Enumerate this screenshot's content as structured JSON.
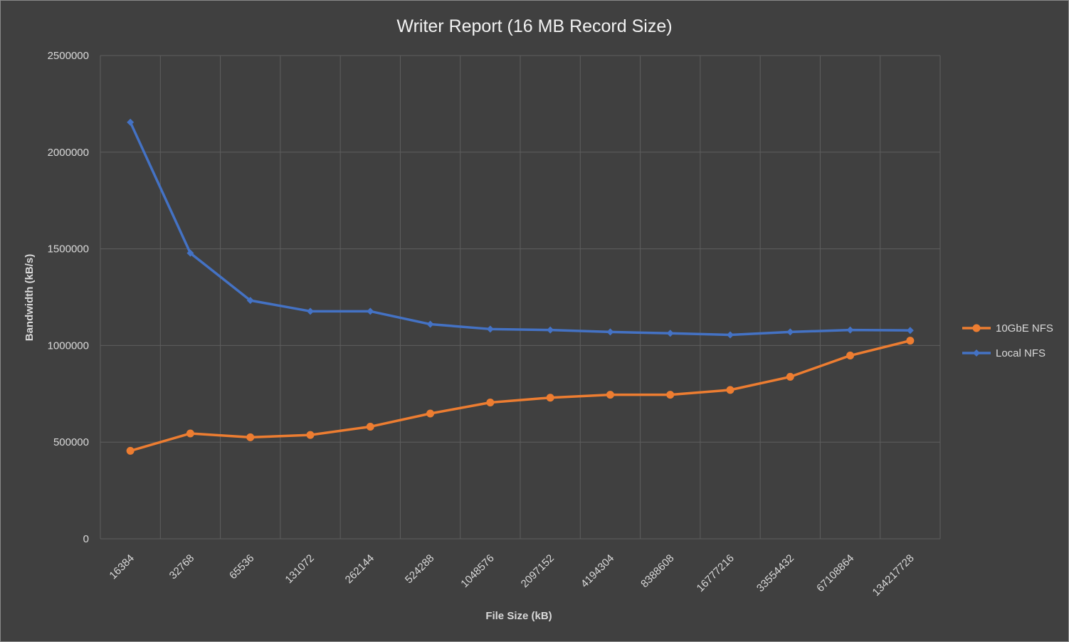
{
  "chart_data": {
    "type": "line",
    "title": "Writer Report (16 MB Record Size)",
    "xlabel": "File Size (kB)",
    "ylabel": "Bandwidth (kB/s)",
    "categories": [
      "16384",
      "32768",
      "65536",
      "131072",
      "262144",
      "524288",
      "1048576",
      "2097152",
      "4194304",
      "8388608",
      "16777216",
      "33554432",
      "67108864",
      "134217728"
    ],
    "ylim": [
      0,
      2500000
    ],
    "yticks": [
      "0",
      "500000",
      "1000000",
      "1500000",
      "2000000",
      "2500000"
    ],
    "grid": true,
    "legend_position": "right",
    "series": [
      {
        "name": "10GbE NFS",
        "color": "#ed7d31",
        "marker": "circle",
        "values": [
          455000,
          545000,
          525000,
          537000,
          580000,
          648000,
          705000,
          730000,
          745000,
          745000,
          770000,
          838000,
          948000,
          1025000
        ]
      },
      {
        "name": "Local NFS",
        "color": "#4472c4",
        "marker": "diamond",
        "values": [
          2155000,
          1478000,
          1233000,
          1177000,
          1177000,
          1110000,
          1085000,
          1080000,
          1070000,
          1063000,
          1055000,
          1070000,
          1080000,
          1078000
        ]
      }
    ]
  }
}
